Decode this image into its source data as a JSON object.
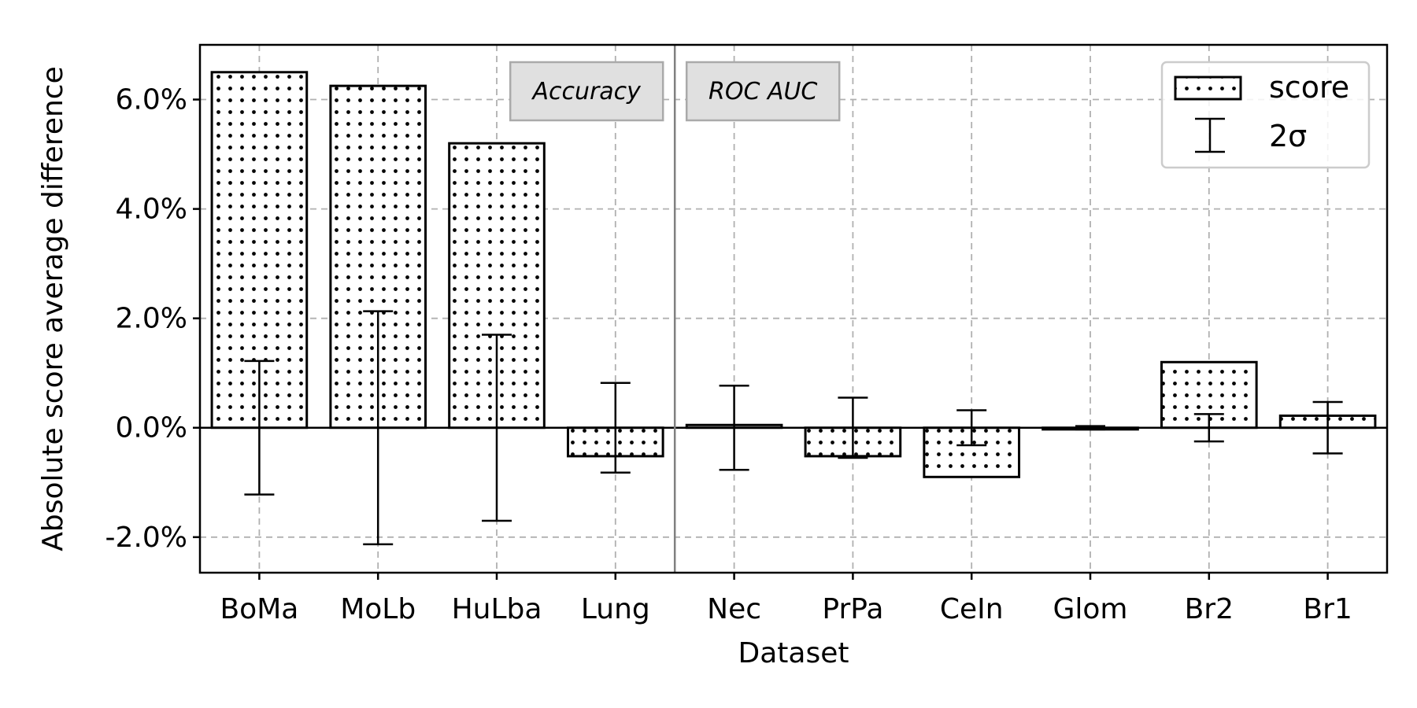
{
  "chart_data": {
    "type": "bar",
    "xlabel": "Dataset",
    "ylabel": "Absolute score average difference",
    "categories": [
      "BoMa",
      "MoLb",
      "HuLba",
      "Lung",
      "Nec",
      "PrPa",
      "CeIn",
      "Glom",
      "Br2",
      "Br1"
    ],
    "values": [
      6.5,
      6.25,
      5.2,
      -0.52,
      0.05,
      -0.52,
      -0.9,
      -0.03,
      1.2,
      0.22
    ],
    "errors": [
      1.22,
      2.13,
      1.7,
      0.82,
      0.77,
      0.55,
      0.32,
      0.03,
      0.25,
      0.47
    ],
    "value_unit": "%",
    "ylim": [
      -2.65,
      7.0
    ],
    "yticks": [
      -2.0,
      0.0,
      2.0,
      4.0,
      6.0
    ],
    "ytick_labels": [
      "-2.0%",
      "0.0%",
      "2.0%",
      "4.0%",
      "6.0%"
    ],
    "grid": true,
    "legend": {
      "placement": "top-right",
      "items": [
        {
          "label": "score",
          "kind": "dotted-bar"
        },
        {
          "label": "2σ",
          "kind": "errorbar"
        }
      ]
    },
    "regions": [
      {
        "label": "Accuracy",
        "categories": [
          "BoMa",
          "MoLb",
          "HuLba",
          "Lung"
        ]
      },
      {
        "label": "ROC AUC",
        "categories": [
          "Nec",
          "PrPa",
          "CeIn",
          "Glom",
          "Br2",
          "Br1"
        ]
      }
    ],
    "colors": {
      "bar_fill": "#ffffff",
      "bar_edge": "#000000",
      "grid": "#b0b0b0",
      "region_box": "#e0e0e0"
    }
  }
}
